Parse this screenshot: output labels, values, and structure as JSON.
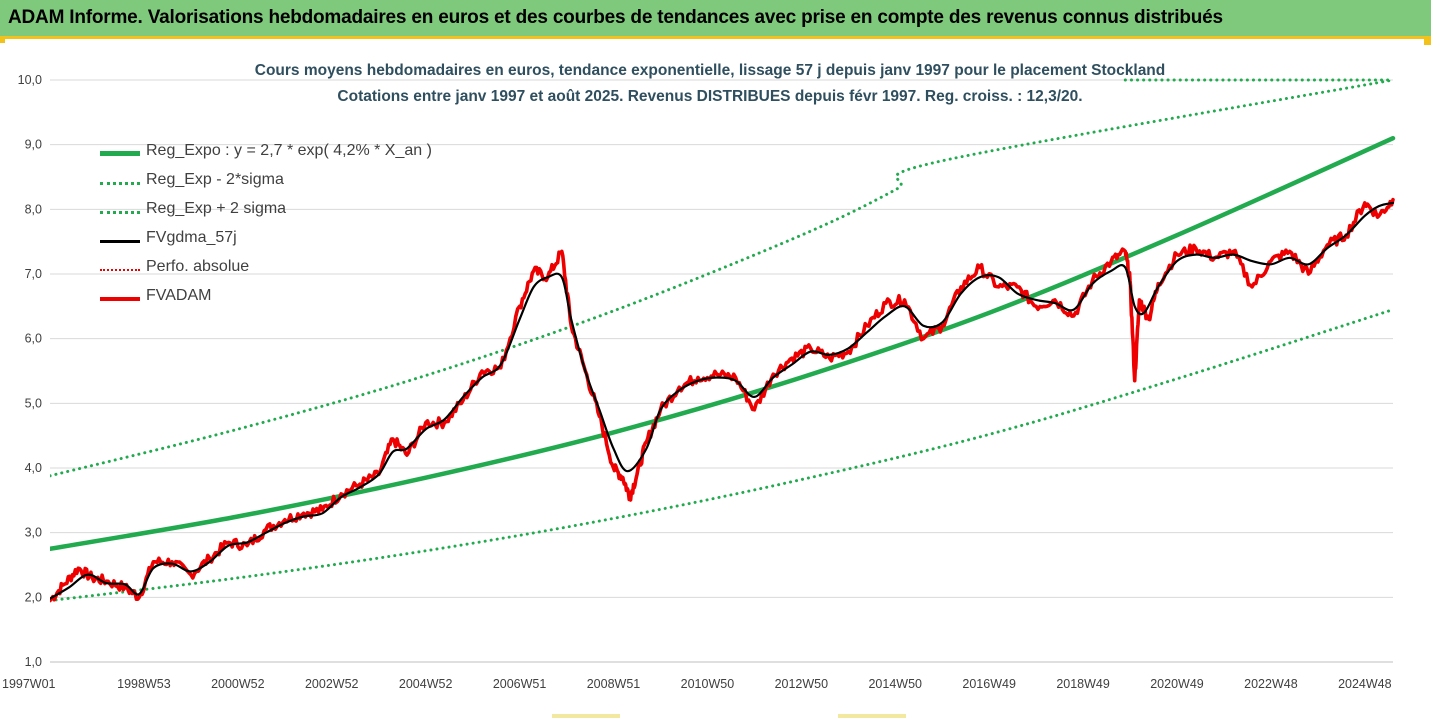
{
  "banner": {
    "title": "ADAM Informe. Valorisations hebdomadaires en euros et des courbes de tendances avec prise en compte des revenus connus distribués"
  },
  "colors": {
    "banner_bg": "#7fc97c",
    "accent_line": "#f2c21a",
    "trend_green": "#22aa4f",
    "band_green": "#22aa4f",
    "smooth_black": "#000000",
    "price_red": "#ee0000"
  },
  "chart_data": {
    "type": "line",
    "title": "Cours moyens hebdomadaires en euros, tendance exponentielle, lissage 57 j depuis janv 1997 pour le placement Stockland",
    "subtitle": "Cotations entre janv 1997 et août 2025.  Revenus DISTRIBUES depuis févr 1997.  Reg. croiss. : 12,3/20.",
    "xlabel": "",
    "ylabel": "",
    "ylim": [
      1.0,
      10.0
    ],
    "xlim": [
      1997.0,
      2025.6
    ],
    "y_ticks": [
      "1,0",
      "2,0",
      "3,0",
      "4,0",
      "5,0",
      "6,0",
      "7,0",
      "8,0",
      "9,0",
      "10,0"
    ],
    "x_ticks": [
      {
        "label": "1997W01",
        "x": 1997.0
      },
      {
        "label": "1998W53",
        "x": 1999.0
      },
      {
        "label": "2000W52",
        "x": 2001.0
      },
      {
        "label": "2002W52",
        "x": 2003.0
      },
      {
        "label": "2004W52",
        "x": 2005.0
      },
      {
        "label": "2006W51",
        "x": 2007.0
      },
      {
        "label": "2008W51",
        "x": 2009.0
      },
      {
        "label": "2010W50",
        "x": 2011.0
      },
      {
        "label": "2012W50",
        "x": 2013.0
      },
      {
        "label": "2014W50",
        "x": 2015.0
      },
      {
        "label": "2016W49",
        "x": 2017.0
      },
      {
        "label": "2018W49",
        "x": 2019.0
      },
      {
        "label": "2020W49",
        "x": 2021.0
      },
      {
        "label": "2022W48",
        "x": 2023.0
      },
      {
        "label": "2024W48",
        "x": 2025.0
      }
    ],
    "grid": "horizontal",
    "legend_position": "top-left",
    "series": [
      {
        "name": "Reg_Expo : y = 2,7 * exp( 4,2% *  X_an )",
        "style": "solid-thick",
        "color": "#22aa4f",
        "x": [
          1997.0,
          2001.0,
          2005.0,
          2009.0,
          2013.0,
          2017.0,
          2021.0,
          2025.6
        ],
        "y": [
          2.75,
          3.25,
          3.85,
          4.55,
          5.4,
          6.4,
          7.6,
          9.1
        ]
      },
      {
        "name": "Reg_Exp - 2*sigma",
        "style": "dotted",
        "color": "#22aa4f",
        "x": [
          1997.0,
          2001.0,
          2005.0,
          2009.0,
          2013.0,
          2017.0,
          2021.0,
          2025.6
        ],
        "y": [
          1.95,
          2.3,
          2.72,
          3.22,
          3.82,
          4.52,
          5.38,
          6.45
        ]
      },
      {
        "name": "Reg_Exp + 2 sigma",
        "style": "dotted",
        "color": "#22aa4f",
        "x": [
          1997.0,
          2001.0,
          2005.0,
          2009.0,
          2013.0,
          2015.0,
          2016.0,
          2025.6
        ],
        "y": [
          3.88,
          4.6,
          5.43,
          6.43,
          7.6,
          8.3,
          8.75,
          10.0
        ],
        "clip_at_top": true
      },
      {
        "name": "FVgdma_57j",
        "style": "solid",
        "color": "#000000",
        "x": [
          1997.0,
          1997.4,
          1997.8,
          1998.2,
          1998.6,
          1998.9,
          1999.2,
          1999.6,
          2000.0,
          2000.4,
          2000.8,
          2001.2,
          2001.6,
          2002.0,
          2002.4,
          2002.8,
          2003.2,
          2003.6,
          2004.0,
          2004.3,
          2004.6,
          2005.0,
          2005.4,
          2005.8,
          2006.2,
          2006.6,
          2007.0,
          2007.3,
          2007.6,
          2007.9,
          2008.1,
          2008.4,
          2008.7,
          2009.0,
          2009.3,
          2009.7,
          2010.0,
          2010.4,
          2010.8,
          2011.2,
          2011.6,
          2012.0,
          2012.4,
          2012.8,
          2013.2,
          2013.6,
          2014.0,
          2014.4,
          2014.8,
          2015.2,
          2015.6,
          2016.0,
          2016.4,
          2016.8,
          2017.2,
          2017.6,
          2018.0,
          2018.4,
          2018.8,
          2019.2,
          2019.6,
          2019.9,
          2020.1,
          2020.3,
          2020.6,
          2021.0,
          2021.4,
          2021.8,
          2022.2,
          2022.6,
          2023.0,
          2023.4,
          2023.8,
          2024.2,
          2024.6,
          2025.0,
          2025.3,
          2025.6
        ],
        "y": [
          1.98,
          2.15,
          2.35,
          2.22,
          2.2,
          2.05,
          2.45,
          2.52,
          2.4,
          2.55,
          2.8,
          2.85,
          3.0,
          3.15,
          3.25,
          3.3,
          3.55,
          3.7,
          3.9,
          4.25,
          4.3,
          4.6,
          4.75,
          5.1,
          5.4,
          5.6,
          6.3,
          6.8,
          6.95,
          6.95,
          6.3,
          5.5,
          4.9,
          4.3,
          3.95,
          4.3,
          4.9,
          5.2,
          5.35,
          5.4,
          5.35,
          5.1,
          5.4,
          5.6,
          5.8,
          5.75,
          5.85,
          6.1,
          6.35,
          6.5,
          6.2,
          6.25,
          6.7,
          6.95,
          6.95,
          6.7,
          6.6,
          6.55,
          6.45,
          6.85,
          7.05,
          7.1,
          6.5,
          6.4,
          6.8,
          7.2,
          7.3,
          7.25,
          7.3,
          7.2,
          7.15,
          7.25,
          7.15,
          7.4,
          7.6,
          7.9,
          8.05,
          8.1
        ]
      },
      {
        "name": "Perfo. absolue",
        "style": "dotted",
        "color": "#ee0000",
        "x": [],
        "y": []
      },
      {
        "name": "FVADAM",
        "style": "solid-thick",
        "color": "#ee0000",
        "x": [
          1997.0,
          1997.3,
          1997.6,
          1997.9,
          1998.2,
          1998.6,
          1998.9,
          1999.2,
          1999.6,
          2000.0,
          2000.4,
          2000.8,
          2001.2,
          2001.6,
          2002.0,
          2002.4,
          2002.8,
          2003.2,
          2003.6,
          2004.0,
          2004.3,
          2004.6,
          2005.0,
          2005.4,
          2005.8,
          2006.2,
          2006.6,
          2007.0,
          2007.3,
          2007.6,
          2007.9,
          2008.1,
          2008.4,
          2008.7,
          2009.0,
          2009.2,
          2009.35,
          2009.5,
          2009.7,
          2010.0,
          2010.4,
          2010.8,
          2011.2,
          2011.6,
          2012.0,
          2012.4,
          2012.8,
          2013.2,
          2013.6,
          2014.0,
          2014.4,
          2014.8,
          2015.2,
          2015.6,
          2016.0,
          2016.4,
          2016.8,
          2017.2,
          2017.6,
          2018.0,
          2018.4,
          2018.8,
          2019.2,
          2019.6,
          2019.9,
          2020.0,
          2020.1,
          2020.2,
          2020.4,
          2020.6,
          2021.0,
          2021.4,
          2021.8,
          2022.2,
          2022.6,
          2023.0,
          2023.4,
          2023.8,
          2024.2,
          2024.6,
          2025.0,
          2025.3,
          2025.6
        ],
        "y": [
          1.95,
          2.2,
          2.45,
          2.3,
          2.25,
          2.15,
          2.0,
          2.55,
          2.55,
          2.35,
          2.6,
          2.85,
          2.8,
          3.05,
          3.2,
          3.3,
          3.35,
          3.6,
          3.75,
          3.9,
          4.45,
          4.2,
          4.7,
          4.7,
          5.05,
          5.5,
          5.55,
          6.5,
          7.05,
          6.95,
          7.35,
          6.2,
          5.5,
          4.8,
          4.0,
          3.85,
          3.55,
          3.9,
          4.4,
          4.9,
          5.25,
          5.4,
          5.45,
          5.4,
          4.9,
          5.45,
          5.7,
          5.85,
          5.7,
          5.8,
          6.2,
          6.55,
          6.6,
          6.0,
          6.2,
          6.8,
          7.1,
          6.8,
          6.8,
          6.5,
          6.6,
          6.35,
          6.9,
          7.2,
          7.35,
          6.9,
          5.35,
          6.6,
          6.3,
          6.85,
          7.3,
          7.4,
          7.25,
          7.35,
          6.8,
          7.2,
          7.35,
          7.0,
          7.45,
          7.6,
          8.1,
          7.9,
          8.15
        ]
      }
    ]
  }
}
